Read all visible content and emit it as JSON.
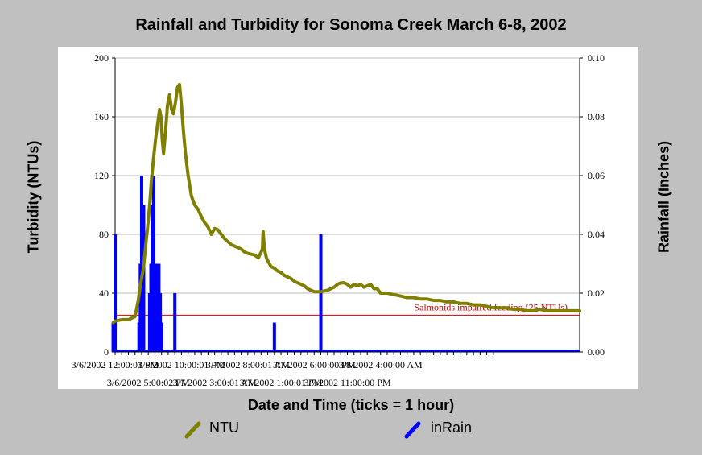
{
  "chart_data": {
    "type": "line",
    "title": "Rainfall and Turbidity for Sonoma Creek March 6-8, 2002",
    "xlabel": "Date and Time (ticks = 1 hour)",
    "ylabel": "Turbidity (NTUs)",
    "y2label": "Rainfall (Inches)",
    "ylim": [
      0,
      200
    ],
    "y2lim": [
      0,
      0.1
    ],
    "y_ticks": [
      "0",
      "40",
      "80",
      "120",
      "160",
      "200"
    ],
    "y2_ticks": [
      "0.00",
      "0.02",
      "0.04",
      "0.06",
      "0.08",
      "0.10"
    ],
    "x_range_hours": [
      0,
      70
    ],
    "x_ticks_top": [
      {
        "h": 0,
        "label": "3/6/2002 12:00:01 PM"
      },
      {
        "h": 10,
        "label": "3/6/2002 10:00:01 PM"
      },
      {
        "h": 20,
        "label": "3/7/2002 8:00:01 AM"
      },
      {
        "h": 30,
        "label": "3/7/2002 6:00:00 PM"
      },
      {
        "h": 40,
        "label": "3/8/2002 4:00:00 AM"
      }
    ],
    "x_ticks_bottom": [
      {
        "h": 5,
        "label": "3/6/2002 5:00:02 PM"
      },
      {
        "h": 15,
        "label": "3/7/2002 3:00:01 AM"
      },
      {
        "h": 25,
        "label": "3/7/2002 1:00:01 PM"
      },
      {
        "h": 35,
        "label": "3/7/2002 11:00:00 PM"
      }
    ],
    "grid": true,
    "legend_placement": "bottom",
    "annotation": {
      "text": "Salmonids impaired feeding (25 NTUs)",
      "value": 25,
      "color": "#cc0000"
    },
    "series": [
      {
        "name": "NTU",
        "axis": "left",
        "color": "#808000",
        "points": [
          [
            -0.3,
            20
          ],
          [
            0,
            21
          ],
          [
            1,
            22
          ],
          [
            2,
            22
          ],
          [
            2.5,
            23
          ],
          [
            3,
            24
          ],
          [
            3.5,
            35
          ],
          [
            3.8,
            45
          ],
          [
            4,
            50
          ],
          [
            4.3,
            58
          ],
          [
            4.6,
            72
          ],
          [
            4.9,
            85
          ],
          [
            5.2,
            100
          ],
          [
            5.5,
            118
          ],
          [
            5.8,
            132
          ],
          [
            6.1,
            145
          ],
          [
            6.4,
            155
          ],
          [
            6.7,
            165
          ],
          [
            6.9,
            160
          ],
          [
            7.1,
            145
          ],
          [
            7.3,
            135
          ],
          [
            7.6,
            150
          ],
          [
            7.9,
            168
          ],
          [
            8.2,
            175
          ],
          [
            8.5,
            165
          ],
          [
            8.8,
            162
          ],
          [
            9.1,
            170
          ],
          [
            9.4,
            180
          ],
          [
            9.7,
            182
          ],
          [
            10,
            168
          ],
          [
            10.3,
            150
          ],
          [
            10.6,
            135
          ],
          [
            11,
            120
          ],
          [
            11.5,
            106
          ],
          [
            12,
            100
          ],
          [
            12.5,
            97
          ],
          [
            13,
            92
          ],
          [
            13.5,
            88
          ],
          [
            14,
            85
          ],
          [
            14.5,
            80
          ],
          [
            15,
            84
          ],
          [
            15.5,
            83
          ],
          [
            16,
            80
          ],
          [
            16.5,
            77
          ],
          [
            17,
            75
          ],
          [
            17.5,
            73
          ],
          [
            18,
            72
          ],
          [
            18.5,
            71
          ],
          [
            19,
            70
          ],
          [
            19.5,
            68
          ],
          [
            20,
            67
          ],
          [
            21,
            66
          ],
          [
            21.6,
            64
          ],
          [
            22,
            68
          ],
          [
            22.2,
            70
          ],
          [
            22.3,
            82
          ],
          [
            22.5,
            70
          ],
          [
            22.8,
            64
          ],
          [
            23,
            62
          ],
          [
            23.5,
            58
          ],
          [
            24,
            57
          ],
          [
            24.5,
            55
          ],
          [
            25,
            54
          ],
          [
            25.5,
            52
          ],
          [
            26,
            51
          ],
          [
            26.5,
            50
          ],
          [
            27,
            48
          ],
          [
            27.5,
            47
          ],
          [
            28,
            46
          ],
          [
            28.5,
            45
          ],
          [
            29,
            43
          ],
          [
            29.5,
            42
          ],
          [
            30,
            41
          ],
          [
            31,
            41
          ],
          [
            32,
            42
          ],
          [
            33,
            44
          ],
          [
            33.5,
            46
          ],
          [
            34,
            47
          ],
          [
            34.5,
            47
          ],
          [
            35,
            46
          ],
          [
            35.5,
            44
          ],
          [
            36,
            46
          ],
          [
            36.5,
            45
          ],
          [
            37,
            46
          ],
          [
            37.5,
            44
          ],
          [
            38,
            45
          ],
          [
            38.5,
            46
          ],
          [
            39,
            43
          ],
          [
            39.5,
            43
          ],
          [
            40,
            40
          ],
          [
            41,
            40
          ],
          [
            42,
            39
          ],
          [
            43,
            38
          ],
          [
            44,
            37
          ],
          [
            45,
            37
          ],
          [
            46,
            36
          ],
          [
            47,
            36
          ],
          [
            48,
            35
          ],
          [
            49,
            35
          ],
          [
            50,
            34
          ],
          [
            51,
            34
          ],
          [
            52,
            33
          ],
          [
            53,
            33
          ],
          [
            54,
            32
          ],
          [
            55,
            32
          ],
          [
            56,
            31
          ],
          [
            57,
            30
          ],
          [
            58,
            30
          ],
          [
            59,
            30
          ],
          [
            60,
            29
          ],
          [
            61,
            29
          ],
          [
            62,
            28
          ],
          [
            63,
            28
          ],
          [
            64,
            29
          ],
          [
            65,
            28
          ],
          [
            66,
            28
          ],
          [
            67,
            28
          ],
          [
            68,
            28
          ],
          [
            69,
            28
          ],
          [
            70,
            28
          ]
        ]
      },
      {
        "name": "inRain",
        "axis": "right",
        "color": "#0000ff",
        "bars": [
          [
            -0.3,
            0.01
          ],
          [
            0,
            0.04
          ],
          [
            3.6,
            0.01
          ],
          [
            3.8,
            0.03
          ],
          [
            4,
            0.06
          ],
          [
            4.3,
            0.05
          ],
          [
            5.2,
            0.02
          ],
          [
            5.4,
            0.03
          ],
          [
            5.6,
            0.05
          ],
          [
            5.8,
            0.06
          ],
          [
            6,
            0.01
          ],
          [
            6.2,
            0.03
          ],
          [
            6.4,
            0.03
          ],
          [
            6.6,
            0.03
          ],
          [
            6.8,
            0.02
          ],
          [
            7,
            0.01
          ],
          [
            9,
            0.02
          ],
          [
            24,
            0.01
          ],
          [
            31,
            0.04
          ]
        ]
      }
    ]
  },
  "legend": [
    {
      "label": "NTU",
      "color": "#808000"
    },
    {
      "label": "inRain",
      "color": "#0000ff"
    }
  ]
}
